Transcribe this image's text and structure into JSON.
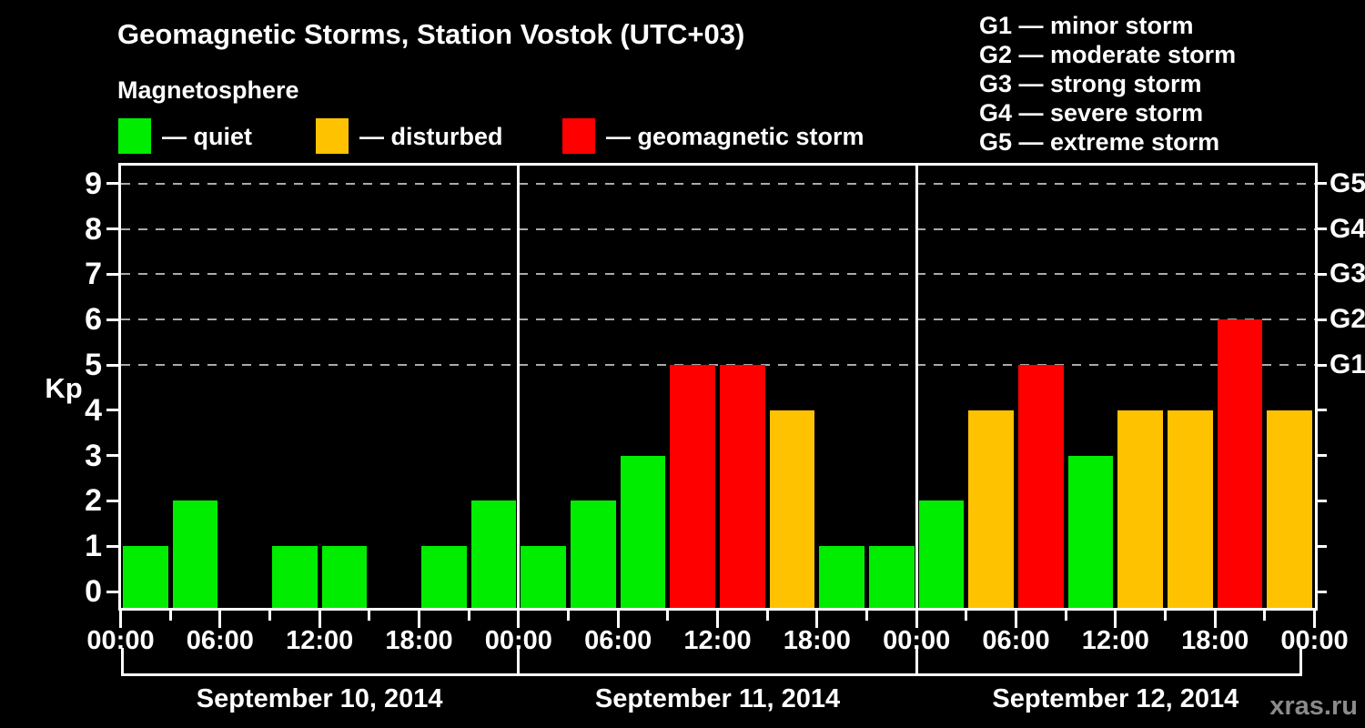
{
  "title": "Geomagnetic Storms, Station Vostok (UTC+03)",
  "watermark": "xras.ru",
  "legend": {
    "heading": "Magnetosphere",
    "items": [
      {
        "label": "— quiet",
        "category": "quiet",
        "color": "#00ED00"
      },
      {
        "label": "— disturbed",
        "category": "disturbed",
        "color": "#FFC200"
      },
      {
        "label": "— geomagnetic storm",
        "category": "storm",
        "color": "#FF0000"
      }
    ]
  },
  "g_scale_legend": [
    "G1 — minor storm",
    "G2 — moderate storm",
    "G3 — strong storm",
    "G4 — severe storm",
    "G5 — extreme storm"
  ],
  "chart_data": {
    "type": "bar",
    "title": "Geomagnetic Storms, Station Vostok (UTC+03)",
    "xlabel": "",
    "ylabel": "Kp",
    "ylim": [
      0,
      9
    ],
    "y_ticks": [
      0,
      1,
      2,
      3,
      4,
      5,
      6,
      7,
      8,
      9
    ],
    "grid": "dashed horizontal lines at storm levels only",
    "grid_levels": [
      5,
      6,
      7,
      8,
      9
    ],
    "right_axis": [
      {
        "level": 5,
        "label": "G1"
      },
      {
        "level": 6,
        "label": "G2"
      },
      {
        "level": 7,
        "label": "G3"
      },
      {
        "level": 8,
        "label": "G4"
      },
      {
        "level": 9,
        "label": "G5"
      }
    ],
    "bar_interval_hours": 3,
    "x_time_labels": [
      "00:00",
      "06:00",
      "12:00",
      "18:00"
    ],
    "x_final_label": "00:00",
    "categories_note": "8 bars per day, one per 3-hour interval; value 0 = no bar drawn",
    "days": [
      {
        "date": "September 10, 2014",
        "values": [
          1,
          2,
          0,
          1,
          1,
          0,
          1,
          2
        ],
        "categories": [
          "quiet",
          "quiet",
          "none",
          "quiet",
          "quiet",
          "none",
          "quiet",
          "quiet"
        ]
      },
      {
        "date": "September 11, 2014",
        "values": [
          1,
          2,
          3,
          5,
          5,
          4,
          1,
          1
        ],
        "categories": [
          "quiet",
          "quiet",
          "quiet",
          "storm",
          "storm",
          "disturbed",
          "quiet",
          "quiet"
        ]
      },
      {
        "date": "September 12, 2014",
        "values": [
          2,
          4,
          5,
          3,
          4,
          4,
          6,
          4
        ],
        "categories": [
          "quiet",
          "disturbed",
          "storm",
          "quiet",
          "disturbed",
          "disturbed",
          "storm",
          "disturbed"
        ]
      }
    ],
    "colors": {
      "quiet": "#00ED00",
      "disturbed": "#FFC200",
      "storm": "#FF0000"
    },
    "legend_position": "top-left (bar colors) and top-right (G storm scale)"
  }
}
